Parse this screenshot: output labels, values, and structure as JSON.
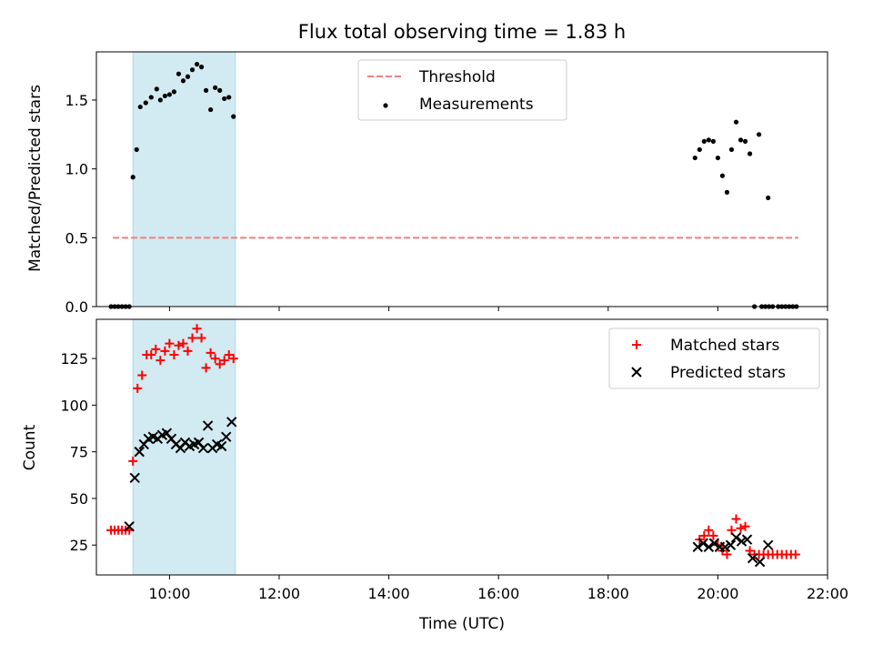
{
  "chart_data": [
    {
      "type": "scatter",
      "title": "Flux total observing time = 1.83 h",
      "ylabel": "Matched/Predicted stars",
      "xlabel": "",
      "xlim": [
        "08:40",
        "22:00"
      ],
      "ylim": [
        0,
        1.85
      ],
      "yticks": [
        "0.0",
        "0.5",
        "1.0",
        "1.5"
      ],
      "shaded_interval": [
        "09:20",
        "11:12"
      ],
      "shaded_color": "#add8e6",
      "legend": {
        "position": "upper-center",
        "entries": [
          "Threshold",
          "Measurements"
        ]
      },
      "threshold": {
        "name": "Threshold",
        "value": 0.5,
        "x_range": [
          "08:58",
          "21:28"
        ],
        "color": "#f08080"
      },
      "series": [
        {
          "name": "Measurements",
          "color": "#000000",
          "points": [
            [
              "08:56",
              0.0
            ],
            [
              "09:00",
              0.0
            ],
            [
              "09:04",
              0.0
            ],
            [
              "09:08",
              0.0
            ],
            [
              "09:12",
              0.0
            ],
            [
              "09:16",
              0.0
            ],
            [
              "09:20",
              0.94
            ],
            [
              "09:24",
              1.14
            ],
            [
              "09:28",
              1.45
            ],
            [
              "09:34",
              1.48
            ],
            [
              "09:40",
              1.52
            ],
            [
              "09:46",
              1.58
            ],
            [
              "09:50",
              1.5
            ],
            [
              "09:55",
              1.53
            ],
            [
              "10:00",
              1.54
            ],
            [
              "10:05",
              1.56
            ],
            [
              "10:10",
              1.69
            ],
            [
              "10:15",
              1.64
            ],
            [
              "10:20",
              1.67
            ],
            [
              "10:25",
              1.72
            ],
            [
              "10:30",
              1.76
            ],
            [
              "10:35",
              1.74
            ],
            [
              "10:40",
              1.57
            ],
            [
              "10:45",
              1.43
            ],
            [
              "10:50",
              1.59
            ],
            [
              "10:55",
              1.57
            ],
            [
              "11:00",
              1.51
            ],
            [
              "11:05",
              1.52
            ],
            [
              "11:10",
              1.38
            ],
            [
              "19:35",
              1.08
            ],
            [
              "19:40",
              1.14
            ],
            [
              "19:45",
              1.2
            ],
            [
              "19:50",
              1.21
            ],
            [
              "19:55",
              1.2
            ],
            [
              "20:00",
              1.08
            ],
            [
              "20:05",
              0.95
            ],
            [
              "20:10",
              0.83
            ],
            [
              "20:15",
              1.14
            ],
            [
              "20:20",
              1.34
            ],
            [
              "20:25",
              1.21
            ],
            [
              "20:30",
              1.2
            ],
            [
              "20:35",
              1.11
            ],
            [
              "20:45",
              1.25
            ],
            [
              "20:55",
              0.79
            ],
            [
              "20:40",
              0.0
            ],
            [
              "20:48",
              0.0
            ],
            [
              "20:52",
              0.0
            ],
            [
              "20:56",
              0.0
            ],
            [
              "21:00",
              0.0
            ],
            [
              "21:06",
              0.0
            ],
            [
              "21:10",
              0.0
            ],
            [
              "21:14",
              0.0
            ],
            [
              "21:18",
              0.0
            ],
            [
              "21:22",
              0.0
            ],
            [
              "21:26",
              0.0
            ]
          ]
        }
      ]
    },
    {
      "type": "scatter",
      "title": "",
      "ylabel": "Count",
      "xlabel": "Time (UTC)",
      "xlim": [
        "08:40",
        "22:00"
      ],
      "ylim": [
        9,
        146
      ],
      "yticks": [
        "25",
        "50",
        "75",
        "100",
        "125"
      ],
      "xticks": [
        "10:00",
        "12:00",
        "14:00",
        "16:00",
        "18:00",
        "20:00",
        "22:00"
      ],
      "shaded_interval": [
        "09:20",
        "11:12"
      ],
      "shaded_color": "#add8e6",
      "legend": {
        "position": "upper-right",
        "entries": [
          "Matched stars",
          "Predicted stars"
        ]
      },
      "series": [
        {
          "name": "Matched stars",
          "marker": "+",
          "color": "#ff0000",
          "points": [
            [
              "08:56",
              33
            ],
            [
              "09:00",
              33
            ],
            [
              "09:04",
              33
            ],
            [
              "09:08",
              33
            ],
            [
              "09:12",
              33
            ],
            [
              "09:16",
              33
            ],
            [
              "09:20",
              70
            ],
            [
              "09:25",
              109
            ],
            [
              "09:30",
              116
            ],
            [
              "09:35",
              127
            ],
            [
              "09:40",
              127
            ],
            [
              "09:45",
              130
            ],
            [
              "09:50",
              124
            ],
            [
              "09:55",
              129
            ],
            [
              "10:00",
              133
            ],
            [
              "10:05",
              127
            ],
            [
              "10:10",
              132
            ],
            [
              "10:15",
              133
            ],
            [
              "10:20",
              129
            ],
            [
              "10:25",
              136
            ],
            [
              "10:30",
              141
            ],
            [
              "10:35",
              136
            ],
            [
              "10:40",
              120
            ],
            [
              "10:45",
              128
            ],
            [
              "10:50",
              125
            ],
            [
              "10:55",
              122
            ],
            [
              "11:00",
              124
            ],
            [
              "11:05",
              127
            ],
            [
              "11:10",
              125
            ],
            [
              "19:40",
              28
            ],
            [
              "19:45",
              30
            ],
            [
              "19:50",
              33
            ],
            [
              "19:55",
              30
            ],
            [
              "20:00",
              25
            ],
            [
              "20:05",
              22
            ],
            [
              "20:10",
              20
            ],
            [
              "20:15",
              33
            ],
            [
              "20:20",
              39
            ],
            [
              "20:25",
              34
            ],
            [
              "20:30",
              35
            ],
            [
              "20:35",
              22
            ],
            [
              "20:40",
              20
            ],
            [
              "20:45",
              20
            ],
            [
              "20:50",
              20
            ],
            [
              "20:55",
              20
            ],
            [
              "21:00",
              20
            ],
            [
              "21:05",
              20
            ],
            [
              "21:10",
              20
            ],
            [
              "21:15",
              20
            ],
            [
              "21:20",
              20
            ],
            [
              "21:25",
              20
            ]
          ]
        },
        {
          "name": "Predicted stars",
          "marker": "x",
          "color": "#000000",
          "points": [
            [
              "09:16",
              35
            ],
            [
              "09:22",
              61
            ],
            [
              "09:27",
              75
            ],
            [
              "09:32",
              79
            ],
            [
              "09:37",
              82
            ],
            [
              "09:42",
              83
            ],
            [
              "09:47",
              82
            ],
            [
              "09:52",
              84
            ],
            [
              "09:57",
              85
            ],
            [
              "10:02",
              82
            ],
            [
              "10:07",
              79
            ],
            [
              "10:12",
              77
            ],
            [
              "10:17",
              80
            ],
            [
              "10:22",
              78
            ],
            [
              "10:27",
              79
            ],
            [
              "10:32",
              80
            ],
            [
              "10:37",
              77
            ],
            [
              "10:42",
              89
            ],
            [
              "10:47",
              77
            ],
            [
              "10:52",
              79
            ],
            [
              "10:57",
              78
            ],
            [
              "11:02",
              83
            ],
            [
              "11:08",
              91
            ],
            [
              "19:38",
              24
            ],
            [
              "19:44",
              26
            ],
            [
              "19:50",
              24
            ],
            [
              "19:56",
              26
            ],
            [
              "20:02",
              24
            ],
            [
              "20:08",
              24
            ],
            [
              "20:14",
              25
            ],
            [
              "20:20",
              29
            ],
            [
              "20:26",
              27
            ],
            [
              "20:32",
              28
            ],
            [
              "20:38",
              18
            ],
            [
              "20:46",
              16
            ],
            [
              "20:55",
              25
            ]
          ]
        }
      ]
    }
  ]
}
